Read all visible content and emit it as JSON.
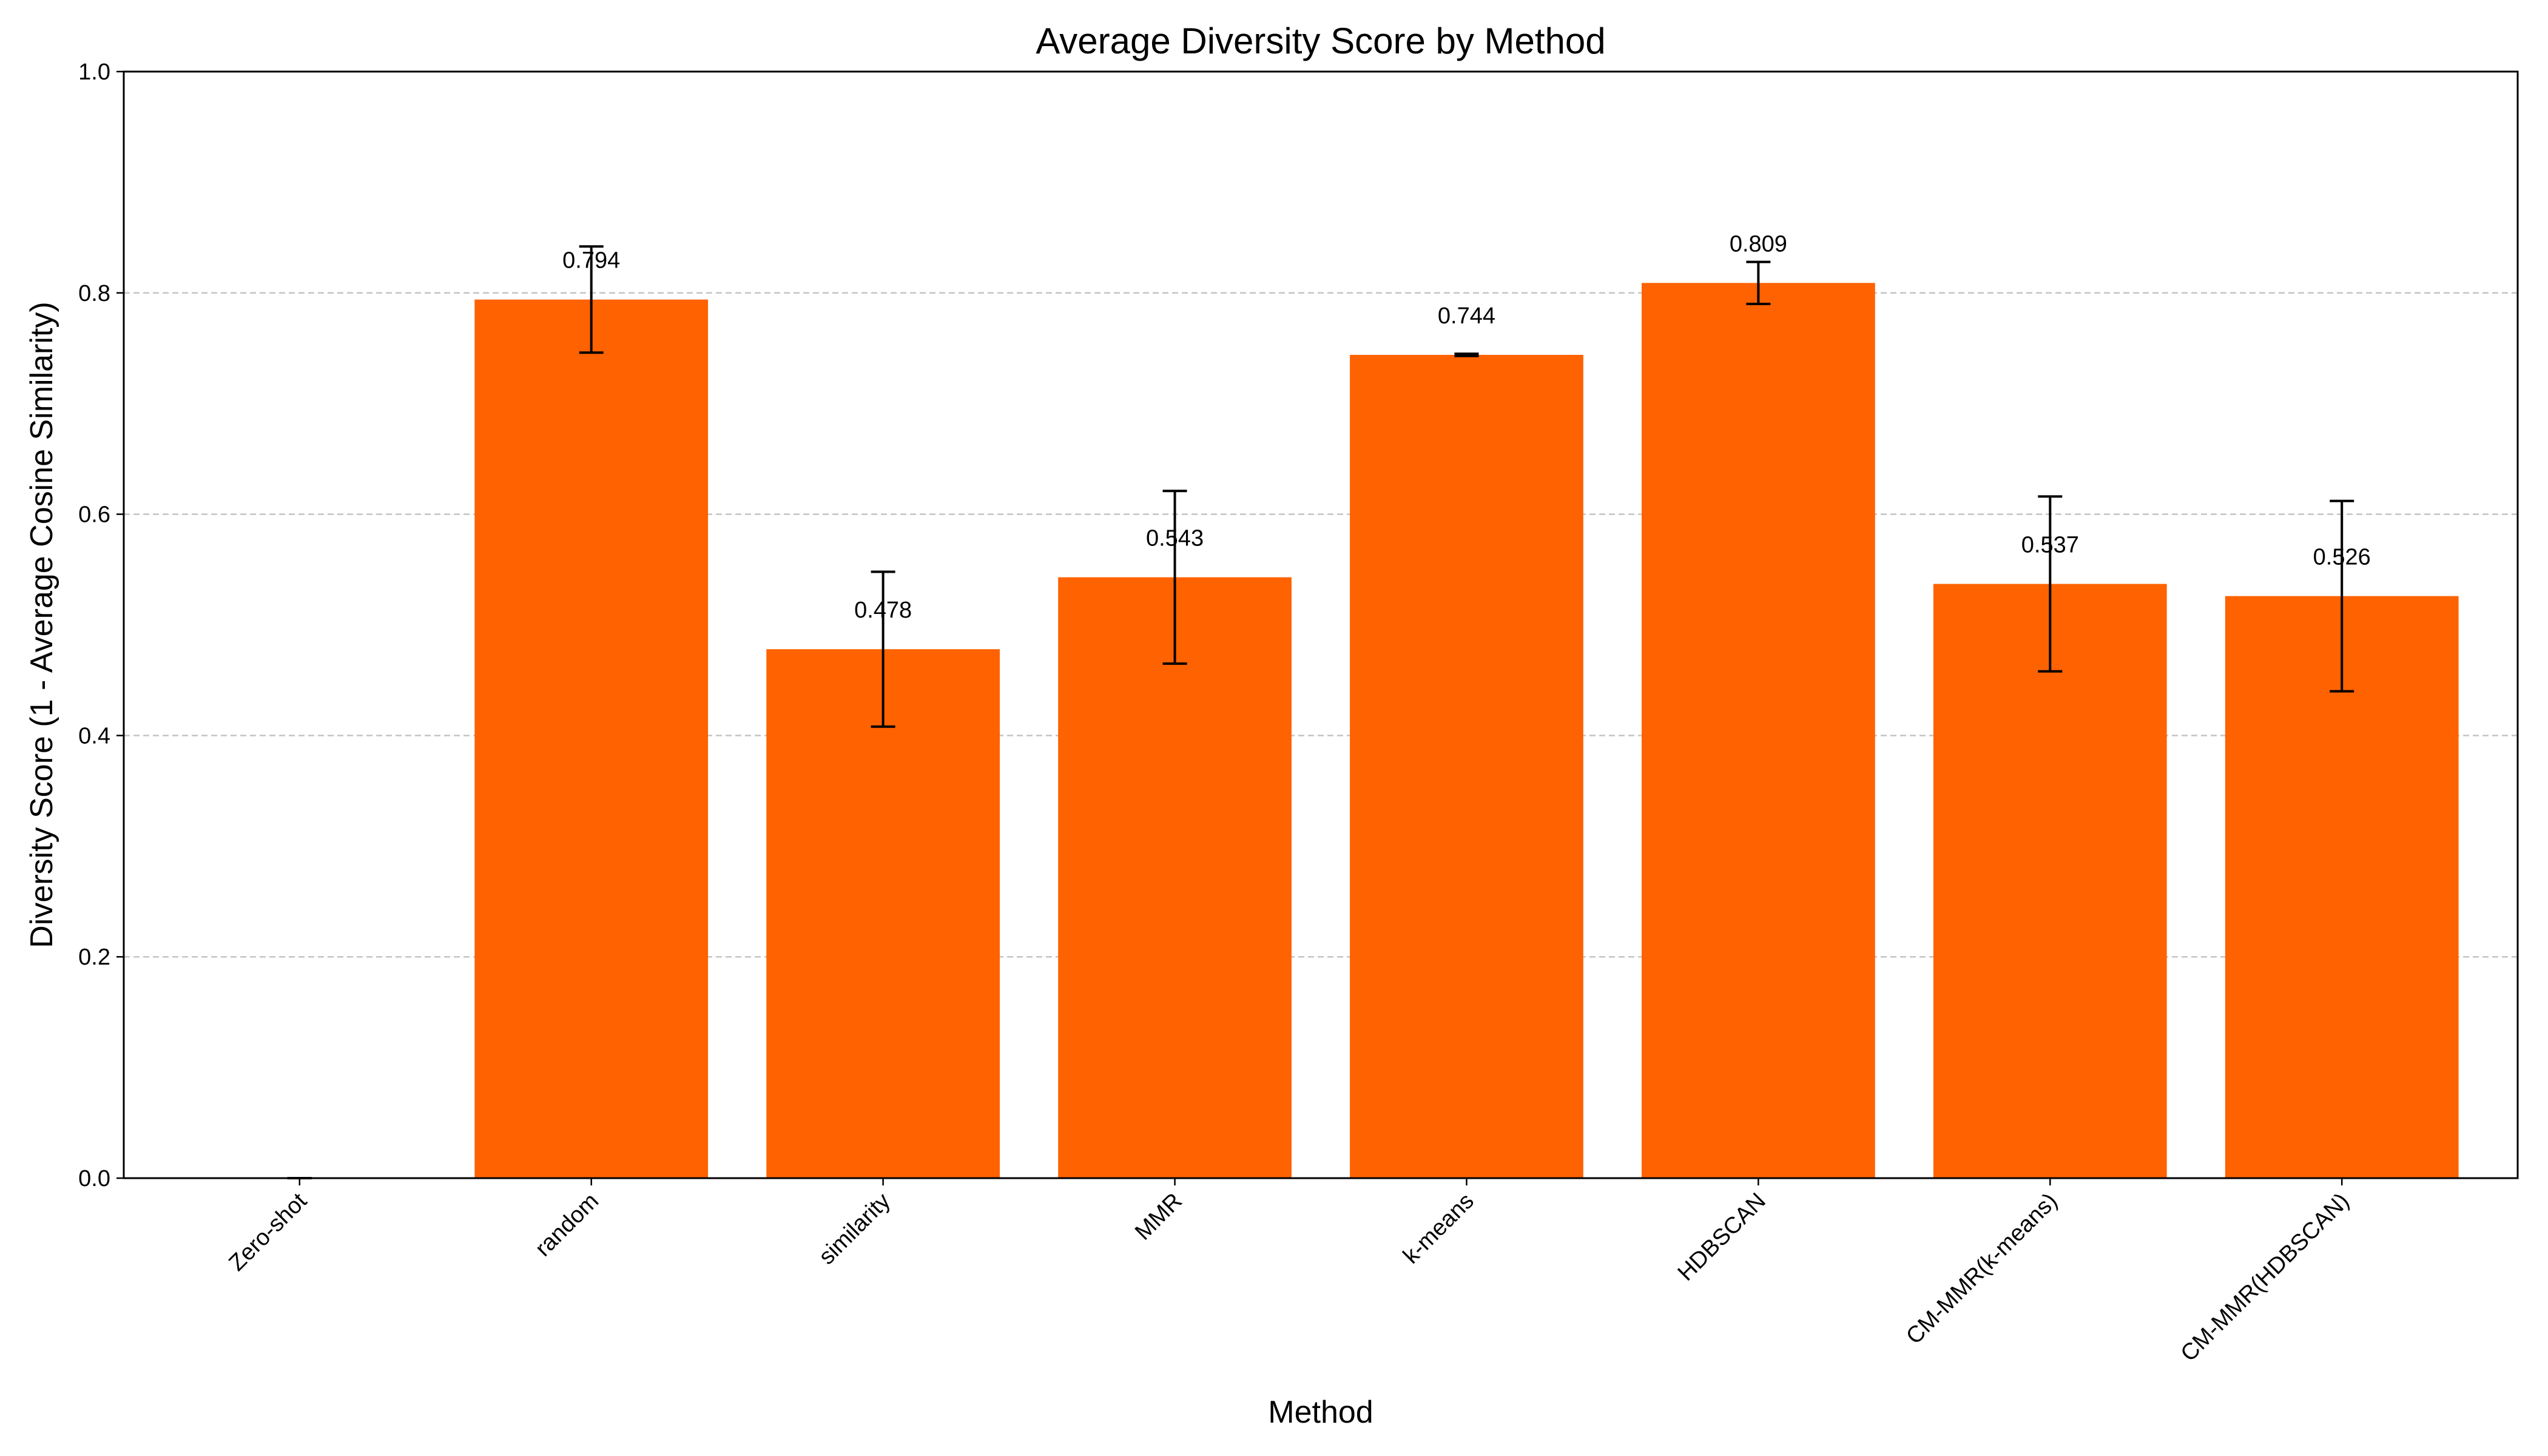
{
  "chart_data": {
    "type": "bar",
    "title": "Average Diversity Score by Method",
    "xlabel": "Method",
    "ylabel": "Diversity Score (1 - Average Cosine Similarity)",
    "ylim": [
      0,
      1.0
    ],
    "yticks": [
      "0.0",
      "0.2",
      "0.4",
      "0.6",
      "0.8",
      "1.0"
    ],
    "grid": "y-dashed",
    "bar_color": "#ff6200",
    "categories": [
      "Zero-shot",
      "random",
      "similarity",
      "MMR",
      "k-means",
      "HDBSCAN",
      "CM-MMR(k-means)",
      "CM-MMR(HDBSCAN)"
    ],
    "values": [
      0,
      0.794,
      0.478,
      0.543,
      0.744,
      0.809,
      0.537,
      0.526
    ],
    "errors": [
      0,
      0.048,
      0.07,
      0.078,
      0.001,
      0.019,
      0.079,
      0.086
    ],
    "value_labels": [
      "",
      "0.794",
      "0.478",
      "0.543",
      "0.744",
      "0.809",
      "0.537",
      "0.526"
    ]
  }
}
